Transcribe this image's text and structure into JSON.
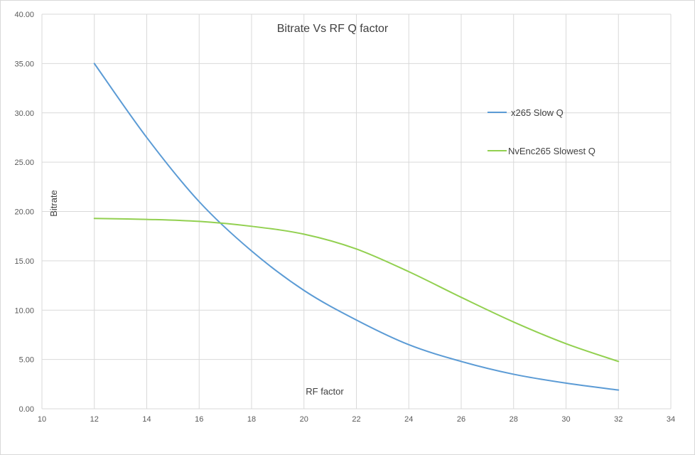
{
  "chart_data": {
    "type": "line",
    "title": "Bitrate Vs RF Q factor",
    "xlabel": "RF factor",
    "ylabel": "Bitrate",
    "xlim": [
      10,
      34
    ],
    "ylim": [
      0,
      40
    ],
    "x_ticks": [
      "10",
      "12",
      "14",
      "16",
      "18",
      "20",
      "22",
      "24",
      "26",
      "28",
      "30",
      "32",
      "34"
    ],
    "y_ticks": [
      "0.00",
      "5.00",
      "10.00",
      "15.00",
      "20.00",
      "25.00",
      "30.00",
      "35.00",
      "40.00"
    ],
    "grid": true,
    "legend_position": "right",
    "x": [
      12,
      14,
      16,
      18,
      20,
      22,
      24,
      26,
      28,
      30,
      32
    ],
    "series": [
      {
        "name": "x265 Slow Q",
        "color": "#5b9bd5",
        "values": [
          35.0,
          27.5,
          21.0,
          16.0,
          12.0,
          9.0,
          6.5,
          4.8,
          3.5,
          2.6,
          1.9
        ]
      },
      {
        "name": "NvEnc265 Slowest Q",
        "color": "#92d050",
        "values": [
          19.3,
          19.2,
          19.0,
          18.5,
          17.7,
          16.2,
          13.9,
          11.3,
          8.8,
          6.6,
          4.8
        ]
      }
    ]
  }
}
